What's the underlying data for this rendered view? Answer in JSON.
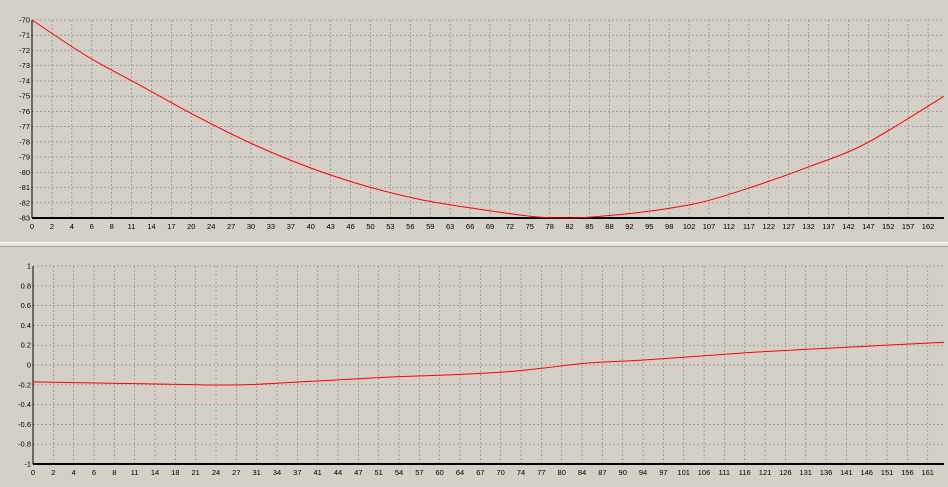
{
  "colors": {
    "background": "#d4d0c8",
    "series": "#ff0000",
    "grid": "#8c8c8c",
    "axis": "#000000"
  },
  "chart_data": [
    {
      "type": "line",
      "title": "",
      "xlabel": "",
      "ylabel": "",
      "xlim": [
        0,
        164
      ],
      "ylim": [
        -83,
        -70
      ],
      "grid": true,
      "y_ticks": [
        -70,
        -71,
        -72,
        -73,
        -74,
        -75,
        -76,
        -77,
        -78,
        -79,
        -80,
        -81,
        -82,
        -83
      ],
      "x_tick_labels": [
        "0",
        "2",
        "4",
        "6",
        "8",
        "11",
        "14",
        "17",
        "20",
        "24",
        "27",
        "30",
        "33",
        "37",
        "40",
        "43",
        "46",
        "50",
        "53",
        "56",
        "59",
        "63",
        "66",
        "69",
        "72",
        "75",
        "78",
        "82",
        "85",
        "88",
        "92",
        "95",
        "98",
        "102",
        "107",
        "112",
        "117",
        "122",
        "127",
        "132",
        "137",
        "142",
        "147",
        "152",
        "157",
        "162"
      ],
      "series": [
        {
          "name": "",
          "x": [
            0,
            10,
            20,
            30,
            40,
            50,
            60,
            70,
            80,
            90,
            96,
            100,
            110,
            120,
            130,
            140,
            150,
            164
          ],
          "y": [
            -70,
            -72.4,
            -74.4,
            -76.4,
            -78.2,
            -79.7,
            -80.9,
            -81.8,
            -82.4,
            -82.9,
            -83,
            -82.95,
            -82.6,
            -82,
            -80.9,
            -79.6,
            -78.1,
            -75
          ]
        }
      ]
    },
    {
      "type": "line",
      "title": "",
      "xlabel": "",
      "ylabel": "",
      "xlim": [
        0,
        164
      ],
      "ylim": [
        -1,
        1
      ],
      "grid": true,
      "y_ticks": [
        1,
        0.8,
        0.6,
        0.4,
        0.2,
        0,
        -0.2,
        -0.4,
        -0.6,
        -0.8,
        -1
      ],
      "x_tick_labels": [
        "0",
        "2",
        "4",
        "6",
        "8",
        "11",
        "14",
        "18",
        "21",
        "24",
        "27",
        "31",
        "34",
        "37",
        "41",
        "44",
        "47",
        "51",
        "54",
        "57",
        "60",
        "64",
        "67",
        "70",
        "74",
        "77",
        "80",
        "84",
        "87",
        "90",
        "94",
        "97",
        "101",
        "106",
        "111",
        "116",
        "121",
        "126",
        "131",
        "136",
        "141",
        "146",
        "151",
        "156",
        "161"
      ],
      "series": [
        {
          "name": "",
          "x": [
            0,
            10,
            20,
            30,
            38,
            45,
            55,
            65,
            75,
            85,
            92,
            100,
            110,
            120,
            130,
            140,
            150,
            164
          ],
          "y": [
            -0.17,
            -0.18,
            -0.19,
            -0.2,
            -0.2,
            -0.18,
            -0.15,
            -0.12,
            -0.1,
            -0.07,
            -0.03,
            0.02,
            0.05,
            0.09,
            0.13,
            0.16,
            0.19,
            0.23
          ]
        }
      ]
    }
  ]
}
